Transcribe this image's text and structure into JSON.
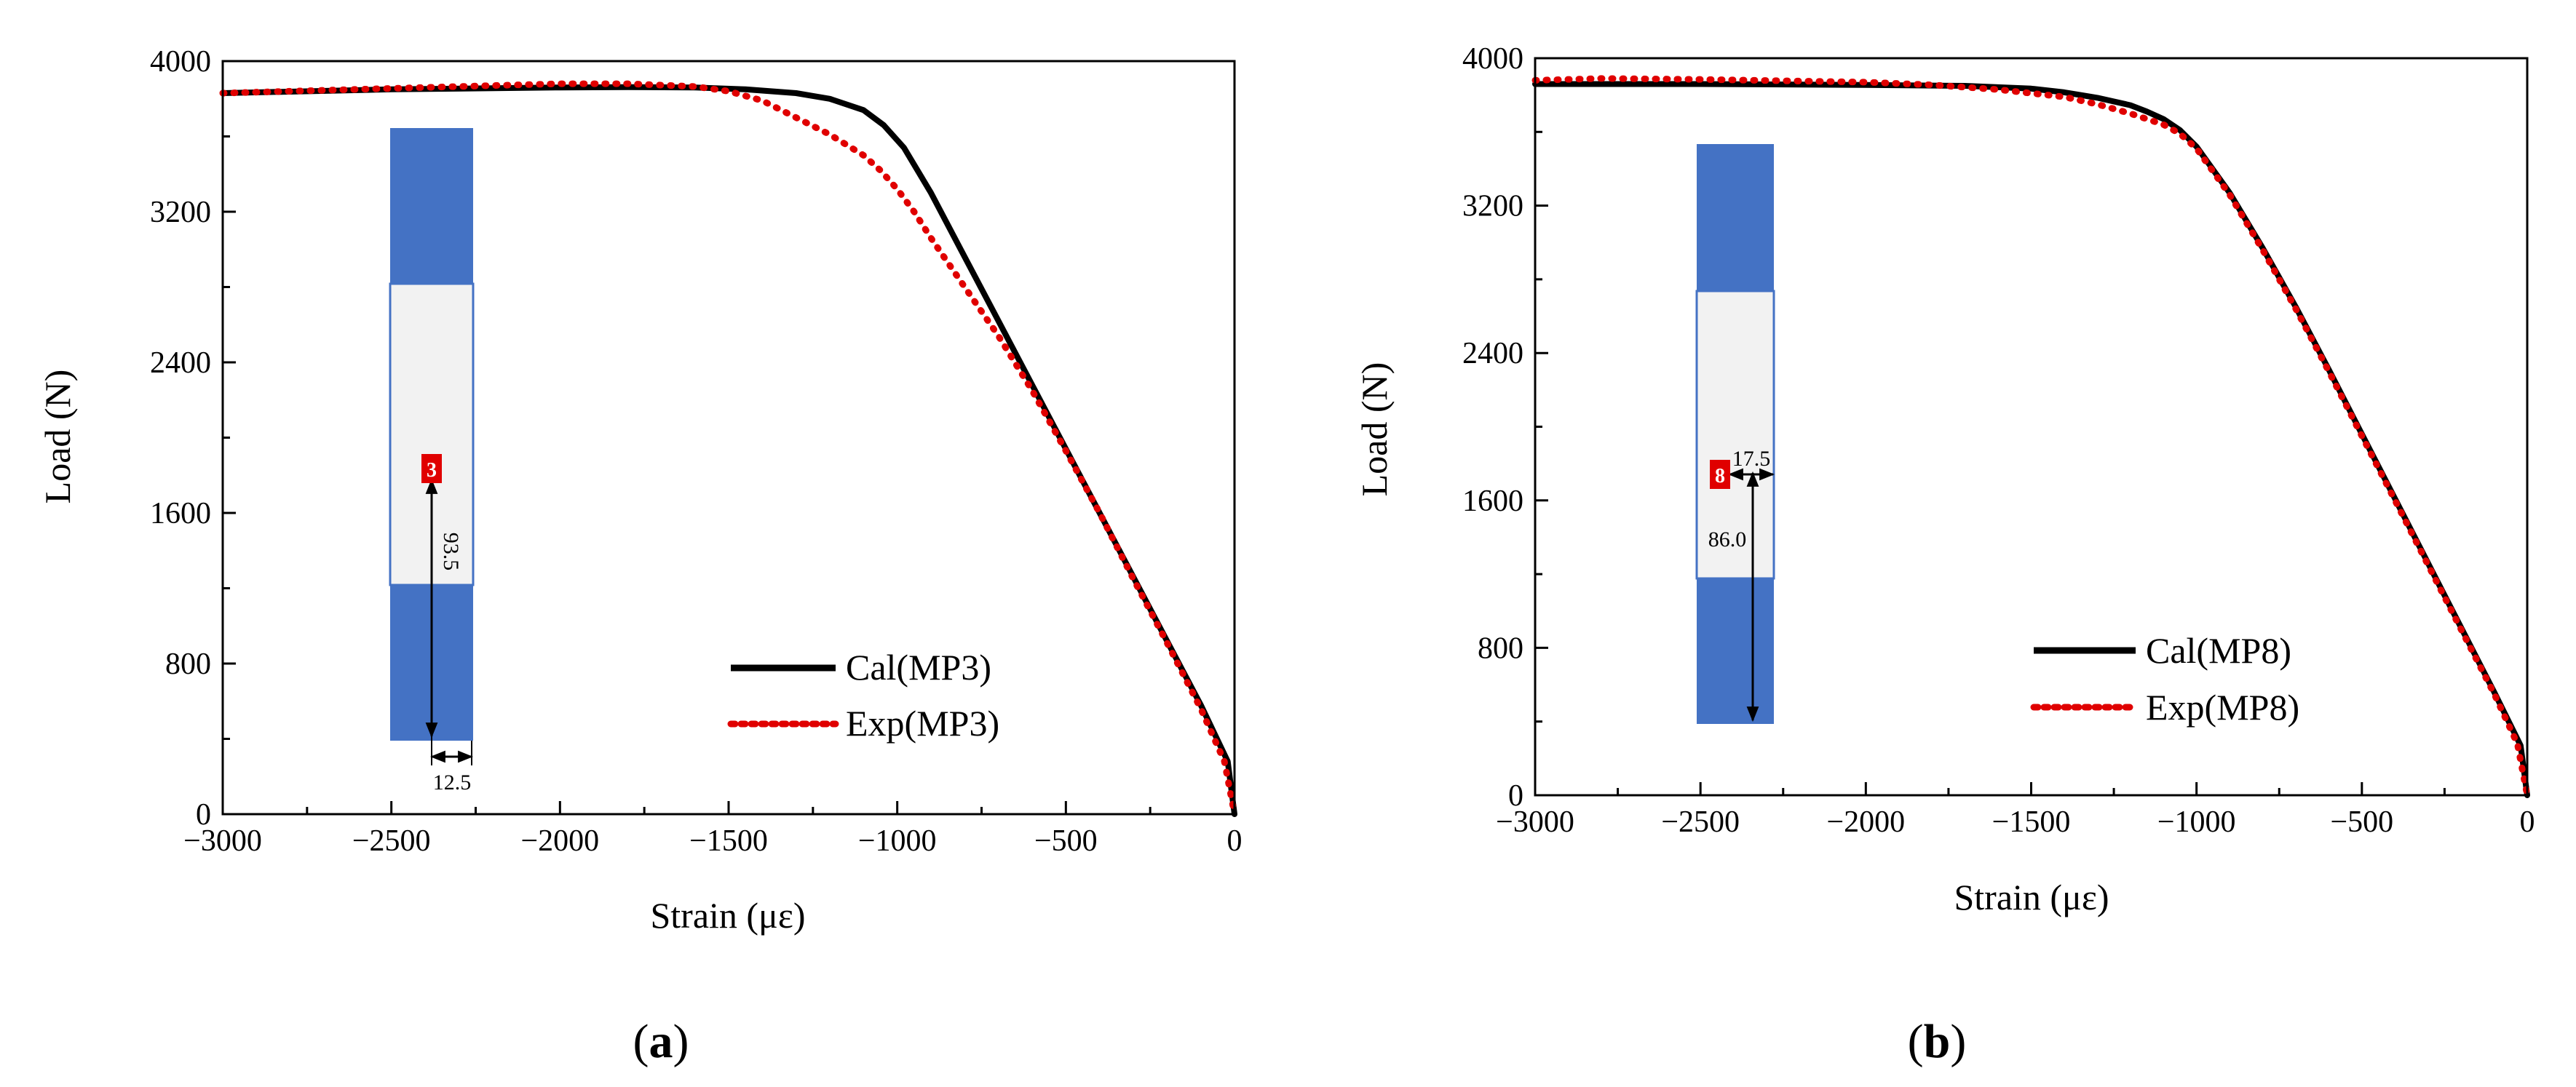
{
  "chart_data": [
    {
      "type": "line",
      "panel_label": "a",
      "xlabel": "Strain (με)",
      "ylabel": "Load (N)",
      "xlim": [
        -3000,
        0
      ],
      "ylim": [
        0,
        4000
      ],
      "x_ticks": [
        -3000,
        -2500,
        -2000,
        -1500,
        -1000,
        -500,
        0
      ],
      "x_tick_labels": [
        "−3000",
        "−2500",
        "−2000",
        "−1500",
        "−1000",
        "−500",
        "0"
      ],
      "y_ticks": [
        0,
        800,
        1600,
        2400,
        3200,
        4000
      ],
      "y_tick_labels": [
        "0",
        "800",
        "1600",
        "2400",
        "3200",
        "4000"
      ],
      "legend_position": "bottom-right",
      "series": [
        {
          "name": "Cal(MP3)",
          "style": "solid",
          "color": "#000000",
          "x": [
            -3000,
            -2500,
            -2000,
            -1800,
            -1600,
            -1450,
            -1300,
            -1200,
            -1100,
            -1040,
            -980,
            -900,
            -800,
            -700,
            -600,
            -500,
            -400,
            -300,
            -200,
            -100,
            -20,
            0
          ],
          "y": [
            3830,
            3850,
            3860,
            3862,
            3860,
            3850,
            3830,
            3800,
            3740,
            3660,
            3540,
            3300,
            2960,
            2620,
            2280,
            1940,
            1600,
            1260,
            920,
            580,
            280,
            0
          ]
        },
        {
          "name": "Exp(MP3)",
          "style": "dotted",
          "color": "#e00000",
          "x": [
            -3000,
            -2500,
            -2200,
            -2000,
            -1800,
            -1600,
            -1500,
            -1400,
            -1300,
            -1200,
            -1100,
            -1050,
            -1000,
            -950,
            -900,
            -850,
            -800,
            -700,
            -600,
            -500,
            -400,
            -300,
            -200,
            -100,
            -30,
            0
          ],
          "y": [
            3830,
            3855,
            3870,
            3880,
            3880,
            3865,
            3840,
            3790,
            3700,
            3610,
            3500,
            3420,
            3320,
            3200,
            3060,
            2930,
            2800,
            2540,
            2250,
            1930,
            1600,
            1250,
            910,
            560,
            280,
            0
          ]
        }
      ],
      "inset": {
        "marker_label": "3",
        "vertical_dimension": "93.5",
        "horizontal_dimension": "12.5"
      }
    },
    {
      "type": "line",
      "panel_label": "b",
      "xlabel": "Strain (με)",
      "ylabel": "Load (N)",
      "xlim": [
        -3000,
        0
      ],
      "ylim": [
        0,
        4000
      ],
      "x_ticks": [
        -3000,
        -2500,
        -2000,
        -1500,
        -1000,
        -500,
        0
      ],
      "x_tick_labels": [
        "−3000",
        "−2500",
        "−2000",
        "−1500",
        "−1000",
        "−500",
        "0"
      ],
      "y_ticks": [
        0,
        800,
        1600,
        2400,
        3200,
        4000
      ],
      "y_tick_labels": [
        "0",
        "800",
        "1600",
        "2400",
        "3200",
        "4000"
      ],
      "legend_position": "bottom-right",
      "series": [
        {
          "name": "Cal(MP8)",
          "style": "solid",
          "color": "#000000",
          "x": [
            -3000,
            -2500,
            -2000,
            -1700,
            -1500,
            -1400,
            -1300,
            -1200,
            -1150,
            -1100,
            -1050,
            -1000,
            -900,
            -800,
            -700,
            -600,
            -500,
            -400,
            -300,
            -200,
            -100,
            -20,
            0
          ],
          "y": [
            3860,
            3860,
            3855,
            3850,
            3835,
            3815,
            3785,
            3745,
            3710,
            3670,
            3610,
            3520,
            3270,
            2970,
            2650,
            2310,
            1960,
            1610,
            1260,
            910,
            560,
            270,
            0
          ]
        },
        {
          "name": "Exp(MP8)",
          "style": "dotted",
          "color": "#e00000",
          "x": [
            -3000,
            -2800,
            -2500,
            -2000,
            -1800,
            -1600,
            -1400,
            -1300,
            -1200,
            -1100,
            -1050,
            -1000,
            -900,
            -800,
            -700,
            -600,
            -500,
            -400,
            -300,
            -200,
            -100,
            -30,
            0
          ],
          "y": [
            3880,
            3890,
            3885,
            3870,
            3855,
            3830,
            3790,
            3750,
            3700,
            3640,
            3590,
            3510,
            3260,
            2960,
            2640,
            2300,
            1950,
            1600,
            1250,
            900,
            550,
            280,
            0
          ]
        }
      ],
      "inset": {
        "marker_label": "8",
        "vertical_dimension": "86.0",
        "horizontal_dimension": "17.5"
      }
    }
  ]
}
